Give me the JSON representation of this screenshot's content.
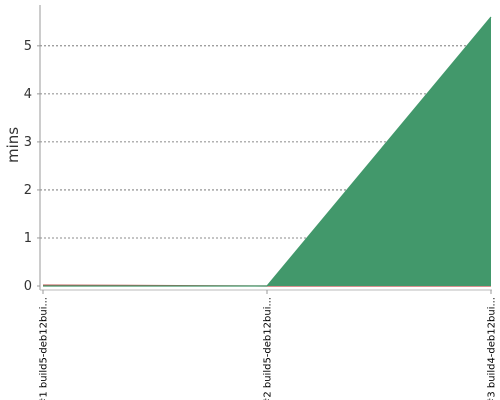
{
  "chart_data": {
    "type": "area",
    "ylabel": "mins",
    "xlabel": "",
    "categories": [
      "#1 build5-deb12bui...",
      "#2 build5-deb12bui...",
      "#3 build4-deb12bui..."
    ],
    "series": [
      {
        "color": "#c0504d",
        "values": [
          0.02,
          0.0,
          0.0
        ]
      },
      {
        "color": "#42986b",
        "values": [
          0.0,
          0.0,
          5.6
        ]
      }
    ],
    "ylim": [
      0,
      5.85
    ],
    "yticks": [
      "0",
      "1",
      "2",
      "3",
      "4",
      "5"
    ],
    "grid": true
  }
}
